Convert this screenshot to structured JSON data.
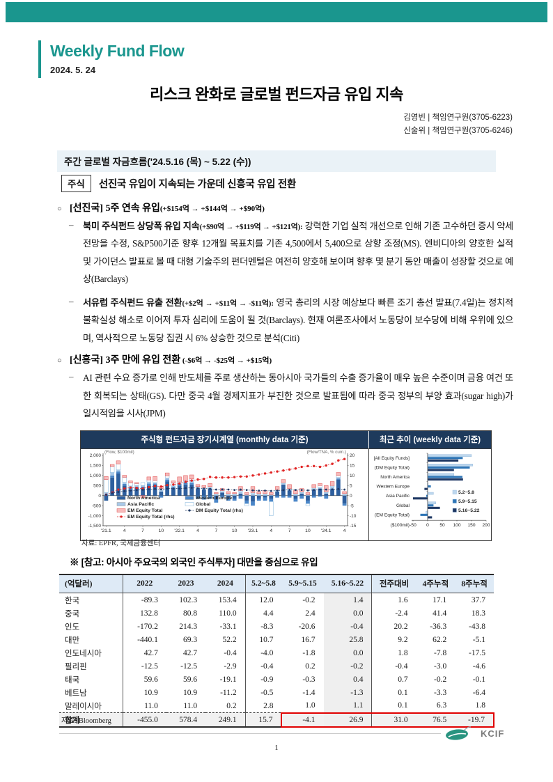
{
  "header": {
    "brand": "Weekly Fund Flow",
    "date": "2024. 5. 24",
    "title": "리스크 완화로 글로벌 펀드자금 유입 지속",
    "authors": [
      "김영빈 | 책임연구원(3705-6223)",
      "신술위 | 책임연구원(3705-6246)"
    ]
  },
  "section": {
    "title": "주간 글로벌 자금흐름('24.5.16 (목) ~ 5.22 (수))"
  },
  "equity": {
    "tag": "주식",
    "headline": "선진국 유입이 지속되는 가운데 신흥국 유입 전환"
  },
  "bullets": {
    "b1": {
      "marker": "○",
      "bold": "[선진국] 5주 연속 유입",
      "paren": "(+$154억 → +$144억 → +$90억)"
    },
    "p1": {
      "marker": "–",
      "lead": "북미 주식펀드 상당폭 유입 지속",
      "paren": "(+$90억 → +$119억 → +$121억):",
      "text": " 강력한 기업 실적 개선으로 인해 기존 고수하던 증시 약세 전망을 수정, S&P500기준 향후 12개월 목표치를 기존 4,500에서 5,400으로 상향 조정(MS). 엔비디아의 양호한 실적 및 가이던스 발표로 볼 때 대형 기술주의 펀더멘털은 여전히 양호해 보이며 향후 몇 분기 동안 매출이 성장할 것으로 예상(Barclays)"
    },
    "p2": {
      "marker": "–",
      "lead": "서유럽 주식펀드 유출 전환",
      "paren": "(+$2억 → +$11억 → -$11억):",
      "text": " 영국 총리의 시장 예상보다 빠른 조기 총선 발표(7.4일)는 정치적 불확실성 해소로 이어져 투자 심리에 도움이 될 것(Barclays). 현재 여론조사에서 노동당이 보수당에 비해 우위에 있으며, 역사적으로 노동당 집권 시 6% 상승한 것으로 분석(Citi)"
    },
    "b2": {
      "marker": "○",
      "bold": "[신흥국] 3주 만에 유입 전환",
      "paren": " (-$6억 → -$25억 → +$15억)"
    },
    "p3": {
      "marker": "–",
      "lead": "",
      "paren": "",
      "text": "AI 관련 수요 증가로 인해 반도체를 주로 생산하는 동아시아 국가들의 수출 증가율이 매우 높은 수준이며 금융 여건 또한 회복되는 상태(GS). 다만 중국 4월 경제지표가 부진한 것으로 발표됨에 따라 중국 정부의 부양 효과(sugar high)가 일시적임을 시사(JPM)"
    }
  },
  "chart_data": [
    {
      "type": "bar",
      "subtype": "stacked-monthly-flows-with-cumulative-lines",
      "title": "주식형 펀드자금 장기시계열 (monthly data 기준)",
      "left_axis_label": "(Flow, $100mil)",
      "right_axis_label": "(Flow/TNA, % cum.)",
      "ylim_left": [
        -1500,
        2000
      ],
      "ylim_right": [
        -15,
        20
      ],
      "left_ticks": [
        2000,
        1500,
        1000,
        500,
        0,
        -500,
        -1000,
        -1500
      ],
      "right_ticks": [
        20,
        15,
        10,
        5,
        0,
        -5,
        -10,
        -15
      ],
      "x_tick_labels": [
        "'21.1",
        "4",
        "7",
        "10",
        "'22.1",
        "4",
        "7",
        "10",
        "'23.1",
        "4",
        "7",
        "10",
        "'24.1",
        "4"
      ],
      "x_tick_positions": [
        0,
        3,
        6,
        9,
        12,
        15,
        18,
        21,
        24,
        27,
        30,
        33,
        36,
        39
      ],
      "bar_series": [
        {
          "name": "North America",
          "color": "#2e5f9e",
          "stroke": "none",
          "values": [
            -250,
            900,
            1100,
            500,
            300,
            400,
            350,
            500,
            550,
            200,
            700,
            350,
            500,
            550,
            550,
            350,
            300,
            350,
            -200,
            150,
            -100,
            -150,
            100,
            -250,
            -300,
            -150,
            -100,
            -150,
            200,
            550,
            250,
            -150,
            100,
            -250,
            300,
            350,
            100,
            300,
            800,
            -400
          ]
        },
        {
          "name": "Western Europe",
          "color": "#4a86c8",
          "stroke": "none",
          "values": [
            50,
            100,
            100,
            80,
            100,
            50,
            100,
            100,
            50,
            -100,
            100,
            80,
            80,
            100,
            80,
            -150,
            -200,
            -150,
            -150,
            -100,
            -150,
            -100,
            -150,
            -150,
            -200,
            -100,
            -150,
            -150,
            -100,
            -100,
            -100,
            -150,
            -150,
            -150,
            -100,
            -50,
            -150,
            50,
            50,
            -100
          ]
        },
        {
          "name": "Asia Pacific",
          "color": "#a8c8e8",
          "stroke": "none",
          "values": [
            100,
            150,
            80,
            80,
            80,
            50,
            50,
            80,
            50,
            50,
            80,
            50,
            50,
            50,
            150,
            50,
            50,
            50,
            50,
            50,
            50,
            50,
            100,
            50,
            100,
            50,
            50,
            50,
            50,
            50,
            50,
            50,
            50,
            50,
            50,
            50,
            50,
            100,
            50,
            50
          ]
        },
        {
          "name": "Global",
          "color": "#ffffff",
          "stroke": "#7fb2d9",
          "values": [
            650,
            300,
            300,
            250,
            150,
            100,
            150,
            100,
            100,
            100,
            100,
            150,
            50,
            50,
            50,
            50,
            50,
            50,
            50,
            50,
            50,
            50,
            50,
            -100,
            50,
            50,
            50,
            -700,
            50,
            50,
            50,
            50,
            50,
            -100,
            50,
            100,
            50,
            50,
            100,
            50
          ]
        },
        {
          "name": "EM Equity Total",
          "color": "#f6baba",
          "stroke": "#e05050",
          "values": [
            150,
            100,
            150,
            100,
            100,
            50,
            -100,
            150,
            200,
            100,
            150,
            100,
            250,
            250,
            200,
            100,
            100,
            150,
            50,
            100,
            100,
            50,
            200,
            100,
            300,
            100,
            150,
            100,
            150,
            150,
            200,
            150,
            150,
            100,
            150,
            100,
            300,
            200,
            150,
            100
          ]
        }
      ],
      "line_series": [
        {
          "name": "EM Equity Total (rhs)",
          "color": "#e02424",
          "axis": "right",
          "values": [
            0.5,
            1.5,
            3.0,
            3.5,
            4.0,
            3.8,
            3.5,
            4.2,
            4.8,
            4.5,
            5.2,
            5.5,
            6.0,
            6.8,
            7.5,
            8.0,
            8.3,
            9.3,
            9.0,
            9.0,
            9.0,
            9.2,
            9.5,
            9.5,
            10.0,
            10.5,
            11.0,
            11.5,
            12.0,
            12.5,
            13.0,
            13.5,
            14.3,
            14.7,
            14.7,
            14.3,
            15.0,
            15.8,
            17.5,
            18.2
          ]
        },
        {
          "name": "DM Equity Total (rhs)",
          "color": "#1f3864",
          "axis": "right",
          "values": [
            0.5,
            1.2,
            1.8,
            2.2,
            2.5,
            2.7,
            2.9,
            3.1,
            3.3,
            3.1,
            3.5,
            3.5,
            3.5,
            3.7,
            3.9,
            3.7,
            3.5,
            3.4,
            3.0,
            3.1,
            3.0,
            2.8,
            3.0,
            2.8,
            2.6,
            2.5,
            2.5,
            2.3,
            2.5,
            2.7,
            2.9,
            2.8,
            2.8,
            2.6,
            2.8,
            3.0,
            3.0,
            3.1,
            3.3,
            3.0
          ]
        }
      ],
      "legend_columns": [
        [
          "North America",
          "Asia Pacific",
          "EM Equity Total",
          "EM Equity Total (rhs)"
        ],
        [
          "Western Europe",
          "Global",
          "DM Equity Total (rhs)"
        ]
      ]
    },
    {
      "type": "bar",
      "orientation": "horizontal",
      "title": "최근 추이 (weekly data 기준)",
      "categories": [
        "[All Equity Funds]",
        "(DM Equity Total)",
        "North America",
        "Western Europe",
        "Asia Pacific",
        "Global",
        "(EM Equity Total)"
      ],
      "series": [
        {
          "name": "5.2~5.8",
          "color": "#bdd7ee",
          "values": [
            150,
            154,
            90,
            2,
            20,
            28,
            -6
          ]
        },
        {
          "name": "5.9~5.15",
          "color": "#2e75b6",
          "values": [
            120,
            144,
            119,
            11,
            -5,
            20,
            -25
          ]
        },
        {
          "name": "5.16~5.22",
          "color": "#1f3864",
          "values": [
            105,
            90,
            121,
            -11,
            -50,
            42,
            15
          ]
        }
      ],
      "xlim": [
        -50,
        200
      ],
      "x_ticks": [
        -50,
        0,
        50,
        100,
        150,
        200
      ],
      "axis_label": "($100mil)",
      "legend_position": "right-middle"
    }
  ],
  "sources": {
    "charts": "자료: EPFR, 국제금융센터",
    "table": "자료: Bloomberg"
  },
  "note": "※ [참고: 아시아 주요국의 외국인 주식투자] 대만을 중심으로 유입",
  "table": {
    "columns": [
      "(억달러)",
      "2022",
      "2023",
      "2024",
      "5.2~5.8",
      "5.9~5.15",
      "5.16~5.22",
      "전주대비",
      "4주누적",
      "8주누적"
    ],
    "rows": [
      {
        "label": "한국",
        "values": [
          "-89.3",
          "102.3",
          "153.4",
          "12.0",
          "-0.2",
          "1.4",
          "1.6",
          "17.1",
          "37.7"
        ]
      },
      {
        "label": "중국",
        "values": [
          "132.8",
          "80.8",
          "110.0",
          "4.4",
          "2.4",
          "0.0",
          "-2.4",
          "41.4",
          "18.3"
        ]
      },
      {
        "label": "인도",
        "values": [
          "-170.2",
          "214.3",
          "-33.1",
          "-8.3",
          "-20.6",
          "-0.4",
          "20.2",
          "-36.3",
          "-43.8"
        ]
      },
      {
        "label": "대만",
        "values": [
          "-440.1",
          "69.3",
          "52.2",
          "10.7",
          "16.7",
          "25.8",
          "9.2",
          "62.2",
          "-5.1"
        ]
      },
      {
        "label": "인도네시아",
        "values": [
          "42.7",
          "42.7",
          "-0.4",
          "-4.0",
          "-1.8",
          "0.0",
          "1.8",
          "-7.8",
          "-17.5"
        ]
      },
      {
        "label": "필리핀",
        "values": [
          "-12.5",
          "-12.5",
          "-2.9",
          "-0.4",
          "0.2",
          "-0.2",
          "-0.4",
          "-3.0",
          "-4.6"
        ]
      },
      {
        "label": "태국",
        "values": [
          "59.6",
          "59.6",
          "-19.1",
          "-0.9",
          "-0.3",
          "0.4",
          "0.7",
          "-0.2",
          "-0.1"
        ]
      },
      {
        "label": "베트남",
        "values": [
          "10.9",
          "10.9",
          "-11.2",
          "-0.5",
          "-1.4",
          "-1.3",
          "0.1",
          "-3.3",
          "-6.4"
        ]
      },
      {
        "label": "말레이시아",
        "values": [
          "11.0",
          "11.0",
          "0.2",
          "2.8",
          "1.0",
          "1.1",
          "0.1",
          "6.3",
          "1.8"
        ]
      },
      {
        "label": "합계",
        "values": [
          "-455.0",
          "578.4",
          "249.1",
          "15.7",
          "-4.1",
          "26.9",
          "31.0",
          "76.5",
          "-19.7"
        ],
        "total": true,
        "red_box_from": 4
      }
    ]
  },
  "footer": {
    "logo": "KCIF",
    "page": "1"
  },
  "colors": {
    "accent_teal": "#1a968e",
    "chart_header_navy": "#1e3a5c",
    "table_header_blue": "#deeaf6",
    "highlight_red": "#e00000"
  }
}
